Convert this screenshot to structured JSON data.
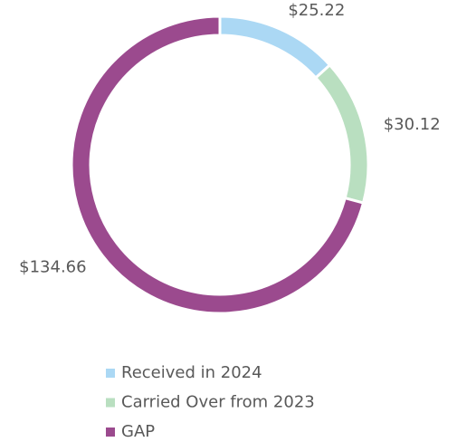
{
  "chart_data": {
    "type": "donut",
    "categories": [
      "Received in 2024",
      "Carried Over from 2023",
      "GAP"
    ],
    "values": [
      25.22,
      30.12,
      134.66
    ],
    "value_labels": [
      "$25.22",
      "$30.12",
      "$134.66"
    ],
    "colors": [
      "#abd8f4",
      "#b9dfc0",
      "#9b4a8e"
    ],
    "legend": "bottom"
  }
}
